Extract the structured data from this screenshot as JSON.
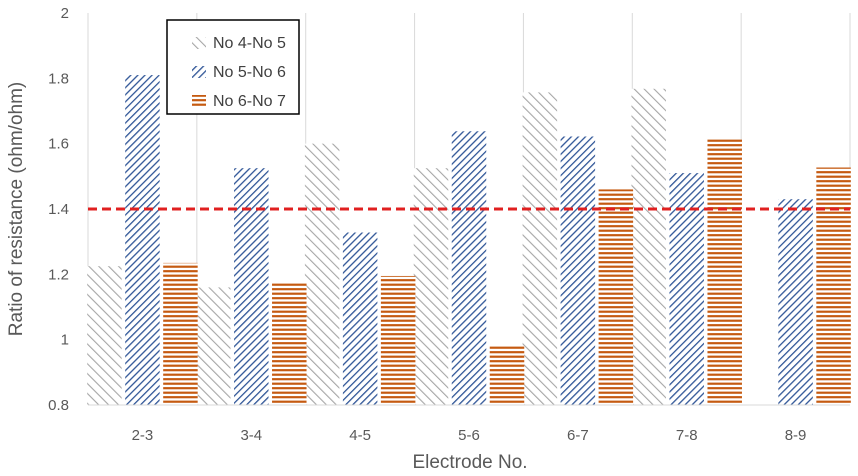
{
  "chart_data": {
    "type": "bar",
    "title": "",
    "xlabel": "Electrode No.",
    "ylabel": "Ratio of resistance (ohm/ohm)",
    "ylim": [
      0.8,
      2
    ],
    "yticks": [
      "0.8",
      "1",
      "1.2",
      "1.4",
      "1.6",
      "1.8",
      "2"
    ],
    "categories": [
      "2-3",
      "3-4",
      "4-5",
      "5-6",
      "6-7",
      "7-8",
      "8-9"
    ],
    "series": [
      {
        "name": "No 4-No 5",
        "values": [
          1.225,
          1.16,
          1.6,
          1.525,
          1.757,
          1.768,
          null
        ],
        "color": "#a6a6a6",
        "pattern": "diagonal-wide"
      },
      {
        "name": "No 5-No 6",
        "values": [
          1.81,
          1.525,
          1.328,
          1.638,
          1.622,
          1.51,
          1.43
        ],
        "color": "#2f5597",
        "pattern": "diagonal-dense"
      },
      {
        "name": "No 6-No 7",
        "values": [
          1.235,
          1.178,
          1.195,
          0.98,
          1.46,
          1.613,
          1.527
        ],
        "color": "#c55a11",
        "pattern": "horizontal"
      }
    ],
    "reference_line": {
      "value": 1.4,
      "color": "#e02020",
      "style": "dashed"
    },
    "grid": "vertical-category-dividers",
    "legend_position": "top-left"
  }
}
